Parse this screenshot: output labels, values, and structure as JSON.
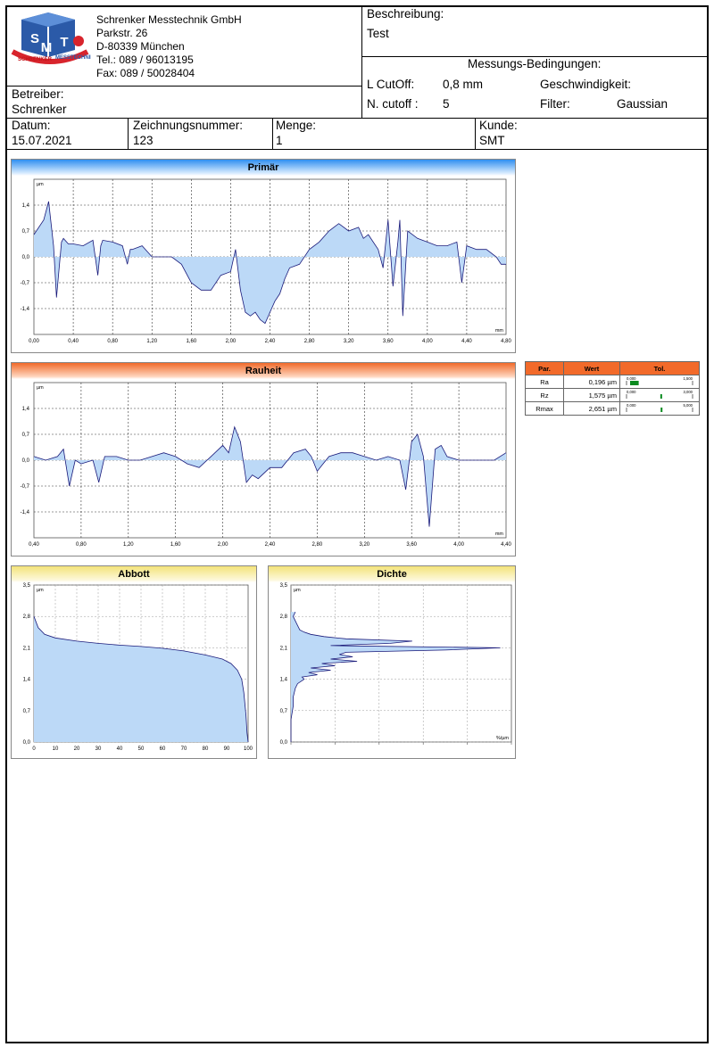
{
  "company": {
    "logo_text": "SMT",
    "logo_ring": "SCHRENKER MESSTECHNIK",
    "name": "Schrenker Messtechnik GmbH",
    "street": "Parkstr. 26",
    "city": "D-80339 München",
    "tel": "Tel.: 089 / 96013195",
    "fax": "Fax: 089 / 50028404"
  },
  "header": {
    "beschreibung_label": "Beschreibung:",
    "beschreibung_value": "Test",
    "betreiber_label": "Betreiber:",
    "betreiber_value": "Schrenker",
    "conditions_title": "Messungs-Bedingungen:",
    "lcutoff_label": "L CutOff:",
    "lcutoff_value": "0,8 mm",
    "ncutoff_label": "N. cutoff :",
    "ncutoff_value": "5",
    "speed_label": "Geschwindigkeit:",
    "speed_value": "",
    "filter_label": "Filter:",
    "filter_value": "Gaussian",
    "datum_label": "Datum:",
    "datum_value": "15.07.2021",
    "zeichnung_label": "Zeichnungsnummer:",
    "zeichnung_value": "123",
    "menge_label": "Menge:",
    "menge_value": "1",
    "kunde_label": "Kunde:",
    "kunde_value": "SMT"
  },
  "parameters": {
    "headers": [
      "Par.",
      "Wert",
      "Tol."
    ],
    "rows": [
      {
        "name": "Ra",
        "value": "0,196 µm",
        "tol_min": "0,000",
        "tol_max": "1,500",
        "fraction": 0.13
      },
      {
        "name": "Rz",
        "value": "1,575 µm",
        "tol_min": "0,000",
        "tol_max": "3,000",
        "fraction": 0.525
      },
      {
        "name": "Rmax",
        "value": "2,651 µm",
        "tol_min": "0,000",
        "tol_max": "5,000",
        "fraction": 0.53
      }
    ],
    "bar_color": "#0a8a1e"
  },
  "chart_data": [
    {
      "type": "area",
      "title": "Primär",
      "xunit": "mm",
      "yunit": "µm",
      "xticks": [
        "0,00",
        "0,40",
        "0,80",
        "1,20",
        "1,60",
        "2,00",
        "2,40",
        "2,80",
        "3,20",
        "3,60",
        "4,00",
        "4,40",
        "4,80"
      ],
      "yticks": [
        "1,4",
        "0,7",
        "0,0",
        "-0,7",
        "-1,4"
      ],
      "xlim": [
        0,
        4.8
      ],
      "ylim": [
        -2.1,
        2.1
      ],
      "x": [
        0.0,
        0.1,
        0.15,
        0.2,
        0.23,
        0.28,
        0.3,
        0.35,
        0.4,
        0.5,
        0.6,
        0.65,
        0.68,
        0.7,
        0.8,
        0.9,
        0.95,
        0.98,
        1.0,
        1.1,
        1.2,
        1.3,
        1.4,
        1.5,
        1.6,
        1.7,
        1.8,
        1.9,
        2.0,
        2.05,
        2.1,
        2.15,
        2.2,
        2.25,
        2.3,
        2.35,
        2.4,
        2.45,
        2.5,
        2.55,
        2.6,
        2.7,
        2.8,
        2.9,
        3.0,
        3.1,
        3.2,
        3.3,
        3.35,
        3.4,
        3.5,
        3.55,
        3.6,
        3.65,
        3.7,
        3.72,
        3.75,
        3.8,
        3.9,
        4.0,
        4.1,
        4.2,
        4.3,
        4.35,
        4.4,
        4.5,
        4.6,
        4.7,
        4.75,
        4.8
      ],
      "y": [
        0.6,
        1.0,
        1.5,
        0.3,
        -1.1,
        0.4,
        0.5,
        0.35,
        0.35,
        0.3,
        0.45,
        -0.5,
        0.3,
        0.45,
        0.4,
        0.3,
        -0.2,
        0.2,
        0.2,
        0.3,
        0.0,
        0.0,
        0.0,
        -0.2,
        -0.7,
        -0.9,
        -0.9,
        -0.5,
        -0.4,
        0.2,
        -0.9,
        -1.5,
        -1.6,
        -1.5,
        -1.7,
        -1.8,
        -1.5,
        -1.2,
        -1.0,
        -0.6,
        -0.3,
        -0.2,
        0.2,
        0.4,
        0.7,
        0.9,
        0.7,
        0.8,
        0.5,
        0.6,
        0.2,
        -0.3,
        1.0,
        -0.8,
        0.4,
        1.0,
        -1.6,
        0.7,
        0.5,
        0.4,
        0.3,
        0.3,
        0.4,
        -0.7,
        0.3,
        0.2,
        0.2,
        0.0,
        -0.2,
        -0.2
      ]
    },
    {
      "type": "area",
      "title": "Rauheit",
      "xunit": "mm",
      "yunit": "µm",
      "xticks": [
        "0,40",
        "0,80",
        "1,20",
        "1,60",
        "2,00",
        "2,40",
        "2,80",
        "3,20",
        "3,60",
        "4,00",
        "4,40"
      ],
      "yticks": [
        "1,4",
        "0,7",
        "0,0",
        "-0,7",
        "-1,4"
      ],
      "xlim": [
        0.4,
        4.4
      ],
      "ylim": [
        -2.1,
        2.1
      ],
      "x": [
        0.4,
        0.5,
        0.6,
        0.65,
        0.7,
        0.75,
        0.8,
        0.9,
        0.95,
        1.0,
        1.1,
        1.2,
        1.3,
        1.4,
        1.5,
        1.6,
        1.7,
        1.8,
        1.9,
        2.0,
        2.05,
        2.1,
        2.15,
        2.2,
        2.25,
        2.3,
        2.4,
        2.5,
        2.6,
        2.7,
        2.75,
        2.8,
        2.9,
        3.0,
        3.1,
        3.2,
        3.3,
        3.4,
        3.5,
        3.55,
        3.6,
        3.65,
        3.7,
        3.75,
        3.8,
        3.85,
        3.9,
        4.0,
        4.1,
        4.2,
        4.3,
        4.4
      ],
      "y": [
        0.1,
        0.0,
        0.1,
        0.3,
        -0.7,
        0.0,
        -0.1,
        0.0,
        -0.6,
        0.1,
        0.1,
        0.0,
        0.0,
        0.1,
        0.2,
        0.1,
        -0.1,
        -0.2,
        0.1,
        0.4,
        0.2,
        0.9,
        0.5,
        -0.6,
        -0.4,
        -0.5,
        -0.2,
        -0.2,
        0.2,
        0.3,
        0.1,
        -0.3,
        0.1,
        0.2,
        0.2,
        0.1,
        0.0,
        0.1,
        0.0,
        -0.8,
        0.5,
        0.7,
        0.1,
        -1.8,
        0.3,
        0.4,
        0.1,
        0.0,
        0.0,
        0.0,
        0.0,
        0.2
      ]
    },
    {
      "type": "area",
      "title": "Abbott",
      "xunit": "%",
      "yunit": "µm",
      "xticks": [
        "0",
        "10",
        "20",
        "30",
        "40",
        "50",
        "60",
        "70",
        "80",
        "90",
        "100"
      ],
      "yticks": [
        "3,5",
        "2,8",
        "2,1",
        "1,4",
        "0,7",
        "0,0"
      ],
      "xlim": [
        0,
        100
      ],
      "ylim": [
        0,
        3.5
      ],
      "x": [
        0,
        2,
        5,
        10,
        20,
        30,
        40,
        50,
        60,
        70,
        80,
        88,
        92,
        95,
        97,
        98,
        99,
        99.5,
        100
      ],
      "y": [
        2.8,
        2.55,
        2.4,
        2.32,
        2.25,
        2.2,
        2.16,
        2.13,
        2.09,
        2.03,
        1.94,
        1.85,
        1.75,
        1.6,
        1.4,
        1.1,
        0.6,
        0.2,
        0.0
      ]
    },
    {
      "type": "area",
      "title": "Dichte",
      "xunit": "%/µm",
      "yunit": "µm",
      "yticks": [
        "3,5",
        "2,8",
        "2,1",
        "1,4",
        "0,7",
        "0,0"
      ],
      "ylim": [
        0,
        3.5
      ],
      "xlim": [
        0,
        100
      ],
      "y": [
        2.9,
        2.8,
        2.7,
        2.6,
        2.5,
        2.45,
        2.4,
        2.35,
        2.3,
        2.25,
        2.2,
        2.15,
        2.1,
        2.05,
        2.0,
        1.95,
        1.9,
        1.85,
        1.8,
        1.75,
        1.7,
        1.65,
        1.6,
        1.55,
        1.5,
        1.45,
        1.4,
        1.3,
        1.2,
        1.0,
        0.8,
        0.5,
        0.2,
        0.0
      ],
      "x": [
        2,
        1,
        2,
        3,
        4,
        6,
        9,
        15,
        25,
        55,
        45,
        18,
        95,
        70,
        25,
        22,
        28,
        18,
        30,
        14,
        20,
        9,
        18,
        8,
        12,
        5,
        6,
        3,
        2,
        1,
        1,
        0,
        0,
        0
      ]
    }
  ]
}
